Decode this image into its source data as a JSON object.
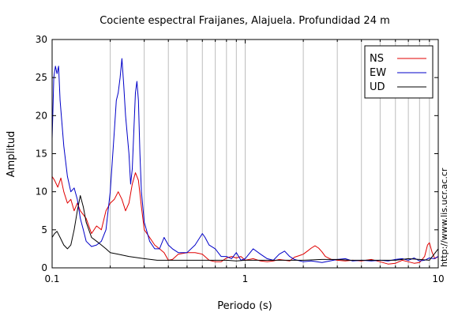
{
  "chart_data": {
    "type": "line",
    "title": "Cociente espectral Fraijanes, Alajuela. Profundidad 24 m",
    "xlabel": "Periodo (s)",
    "ylabel": "Amplitud",
    "x_scale": "log",
    "xlim": [
      0.1,
      10
    ],
    "ylim": [
      0,
      30
    ],
    "x_tick_labels": [
      "0.1",
      "1",
      "10"
    ],
    "y_tick_labels": [
      "0",
      "5",
      "10",
      "15",
      "20",
      "25",
      "30"
    ],
    "vertical_grid": true,
    "horizontal_grid": false,
    "legend_position": "top-right",
    "series": [
      {
        "name": "NS",
        "color": "#e00000",
        "points": [
          [
            0.1,
            12
          ],
          [
            0.103,
            11.5
          ],
          [
            0.107,
            10.6
          ],
          [
            0.111,
            11.8
          ],
          [
            0.115,
            10
          ],
          [
            0.12,
            8.5
          ],
          [
            0.125,
            9
          ],
          [
            0.13,
            7.5
          ],
          [
            0.135,
            8.5
          ],
          [
            0.14,
            7.5
          ],
          [
            0.15,
            6.5
          ],
          [
            0.16,
            4.5
          ],
          [
            0.17,
            5.5
          ],
          [
            0.18,
            5
          ],
          [
            0.19,
            7.5
          ],
          [
            0.2,
            8.5
          ],
          [
            0.21,
            9
          ],
          [
            0.22,
            10
          ],
          [
            0.23,
            9
          ],
          [
            0.24,
            7.5
          ],
          [
            0.25,
            8.5
          ],
          [
            0.26,
            11
          ],
          [
            0.27,
            12.5
          ],
          [
            0.28,
            11.5
          ],
          [
            0.29,
            8
          ],
          [
            0.3,
            5
          ],
          [
            0.32,
            4
          ],
          [
            0.34,
            3
          ],
          [
            0.36,
            2.5
          ],
          [
            0.38,
            2
          ],
          [
            0.4,
            1
          ],
          [
            0.42,
            1.1
          ],
          [
            0.45,
            1.8
          ],
          [
            0.5,
            2
          ],
          [
            0.55,
            2
          ],
          [
            0.6,
            1.8
          ],
          [
            0.65,
            1
          ],
          [
            0.7,
            0.8
          ],
          [
            0.75,
            0.8
          ],
          [
            0.8,
            1.3
          ],
          [
            0.85,
            1.5
          ],
          [
            0.9,
            1.3
          ],
          [
            0.95,
            1.5
          ],
          [
            1,
            1
          ],
          [
            1.1,
            1.2
          ],
          [
            1.2,
            0.9
          ],
          [
            1.3,
            0.8
          ],
          [
            1.4,
            0.9
          ],
          [
            1.5,
            1.1
          ],
          [
            1.6,
            1
          ],
          [
            1.7,
            0.9
          ],
          [
            1.8,
            1.4
          ],
          [
            1.9,
            1.6
          ],
          [
            2,
            1.8
          ],
          [
            2.1,
            2.2
          ],
          [
            2.2,
            2.6
          ],
          [
            2.3,
            2.9
          ],
          [
            2.4,
            2.6
          ],
          [
            2.5,
            2.1
          ],
          [
            2.6,
            1.5
          ],
          [
            2.8,
            1.1
          ],
          [
            3,
            1
          ],
          [
            3.3,
            0.9
          ],
          [
            3.6,
            1
          ],
          [
            4,
            0.9
          ],
          [
            4.5,
            1.1
          ],
          [
            5,
            0.8
          ],
          [
            5.5,
            0.5
          ],
          [
            6,
            0.6
          ],
          [
            6.5,
            1
          ],
          [
            7,
            0.8
          ],
          [
            7.5,
            0.6
          ],
          [
            8,
            0.7
          ],
          [
            8.5,
            1.5
          ],
          [
            8.8,
            3
          ],
          [
            9,
            3.3
          ],
          [
            9.3,
            2
          ],
          [
            9.6,
            1.2
          ],
          [
            10,
            1.5
          ]
        ]
      },
      {
        "name": "EW",
        "color": "#0000c8",
        "points": [
          [
            0.1,
            17
          ],
          [
            0.101,
            21
          ],
          [
            0.102,
            25
          ],
          [
            0.104,
            26.5
          ],
          [
            0.106,
            25.5
          ],
          [
            0.108,
            26.5
          ],
          [
            0.11,
            22
          ],
          [
            0.115,
            16
          ],
          [
            0.12,
            12
          ],
          [
            0.125,
            10
          ],
          [
            0.13,
            10.5
          ],
          [
            0.135,
            9
          ],
          [
            0.14,
            6.5
          ],
          [
            0.145,
            5
          ],
          [
            0.15,
            3.5
          ],
          [
            0.16,
            2.8
          ],
          [
            0.17,
            3
          ],
          [
            0.18,
            3.5
          ],
          [
            0.19,
            5
          ],
          [
            0.2,
            10
          ],
          [
            0.21,
            18
          ],
          [
            0.215,
            22
          ],
          [
            0.22,
            23
          ],
          [
            0.225,
            25
          ],
          [
            0.23,
            27.5
          ],
          [
            0.235,
            24
          ],
          [
            0.24,
            20
          ],
          [
            0.25,
            15
          ],
          [
            0.255,
            11
          ],
          [
            0.26,
            13
          ],
          [
            0.265,
            18
          ],
          [
            0.27,
            23
          ],
          [
            0.275,
            24.5
          ],
          [
            0.28,
            22
          ],
          [
            0.285,
            15
          ],
          [
            0.29,
            10
          ],
          [
            0.3,
            6
          ],
          [
            0.32,
            3.5
          ],
          [
            0.34,
            2.5
          ],
          [
            0.36,
            2.5
          ],
          [
            0.38,
            4
          ],
          [
            0.4,
            3
          ],
          [
            0.42,
            2.5
          ],
          [
            0.45,
            2
          ],
          [
            0.5,
            2
          ],
          [
            0.55,
            3
          ],
          [
            0.6,
            4.5
          ],
          [
            0.62,
            4
          ],
          [
            0.65,
            3
          ],
          [
            0.7,
            2.5
          ],
          [
            0.75,
            1.5
          ],
          [
            0.8,
            1.5
          ],
          [
            0.85,
            1.2
          ],
          [
            0.9,
            2
          ],
          [
            0.95,
            1
          ],
          [
            1,
            1.2
          ],
          [
            1.1,
            2.5
          ],
          [
            1.2,
            1.8
          ],
          [
            1.3,
            1.2
          ],
          [
            1.4,
            1
          ],
          [
            1.5,
            1.8
          ],
          [
            1.6,
            2.2
          ],
          [
            1.7,
            1.5
          ],
          [
            1.8,
            1.1
          ],
          [
            2,
            0.8
          ],
          [
            2.2,
            0.9
          ],
          [
            2.5,
            0.7
          ],
          [
            3,
            1.1
          ],
          [
            3.3,
            1.2
          ],
          [
            3.6,
            0.9
          ],
          [
            4,
            1
          ],
          [
            4.5,
            0.9
          ],
          [
            5,
            1
          ],
          [
            5.5,
            0.9
          ],
          [
            6,
            1.1
          ],
          [
            6.5,
            1.2
          ],
          [
            7,
            1
          ],
          [
            7.5,
            1.3
          ],
          [
            8,
            0.9
          ],
          [
            8.5,
            1
          ],
          [
            9,
            1.3
          ],
          [
            9.5,
            1.2
          ],
          [
            10,
            1.5
          ]
        ]
      },
      {
        "name": "UD",
        "color": "#000000",
        "points": [
          [
            0.1,
            4
          ],
          [
            0.103,
            4.5
          ],
          [
            0.106,
            4.8
          ],
          [
            0.11,
            4
          ],
          [
            0.115,
            3
          ],
          [
            0.12,
            2.5
          ],
          [
            0.125,
            3
          ],
          [
            0.13,
            5
          ],
          [
            0.135,
            7.5
          ],
          [
            0.14,
            9.5
          ],
          [
            0.145,
            8
          ],
          [
            0.15,
            6
          ],
          [
            0.16,
            4
          ],
          [
            0.17,
            3.5
          ],
          [
            0.18,
            3
          ],
          [
            0.19,
            2.5
          ],
          [
            0.2,
            2
          ],
          [
            0.22,
            1.8
          ],
          [
            0.25,
            1.5
          ],
          [
            0.3,
            1.2
          ],
          [
            0.35,
            1
          ],
          [
            0.4,
            1
          ],
          [
            0.5,
            1
          ],
          [
            0.6,
            1
          ],
          [
            0.7,
            1
          ],
          [
            0.8,
            1
          ],
          [
            0.9,
            0.9
          ],
          [
            1,
            1
          ],
          [
            1.2,
            1
          ],
          [
            1.5,
            1
          ],
          [
            2,
            1
          ],
          [
            2.5,
            1.1
          ],
          [
            3,
            1.1
          ],
          [
            3.5,
            1
          ],
          [
            4,
            1
          ],
          [
            5,
            1
          ],
          [
            6,
            1
          ],
          [
            7,
            1.2
          ],
          [
            8,
            1.1
          ],
          [
            9,
            1
          ],
          [
            10,
            2.5
          ]
        ]
      }
    ]
  },
  "side_text": "http://www.lis.ucr.ac.cr"
}
